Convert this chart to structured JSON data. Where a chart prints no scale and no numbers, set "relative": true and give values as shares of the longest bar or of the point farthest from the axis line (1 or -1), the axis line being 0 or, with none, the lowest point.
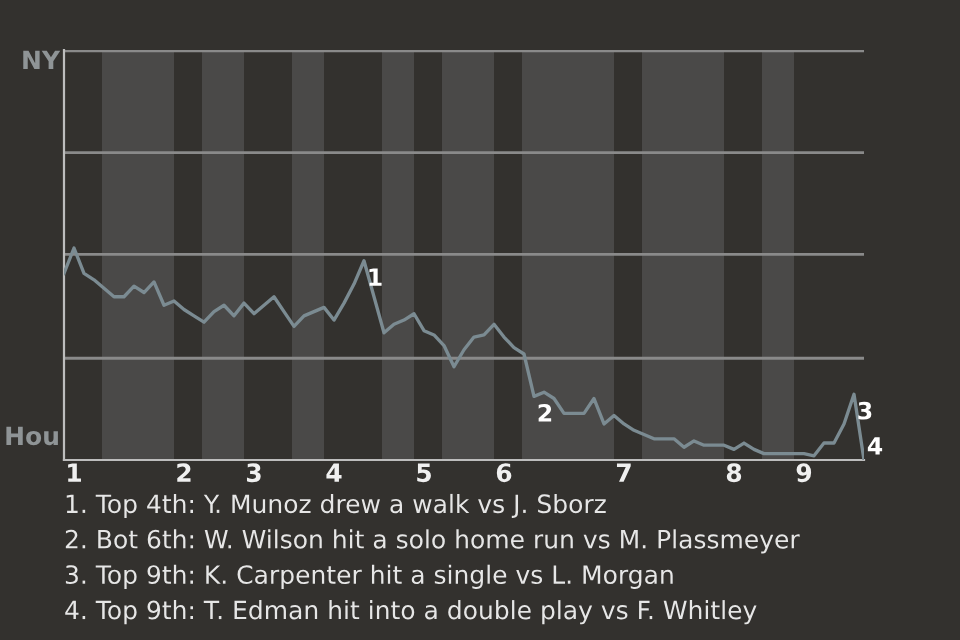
{
  "chart_data": {
    "type": "line",
    "relative": true,
    "categories": [
      null,
      "1",
      null,
      null,
      null,
      null,
      null,
      null,
      null,
      null,
      null,
      null,
      "2",
      null,
      null,
      null,
      null,
      null,
      null,
      "3",
      null,
      null,
      null,
      null,
      null,
      null,
      null,
      "4",
      null,
      null,
      null,
      null,
      null,
      null,
      null,
      null,
      "5",
      null,
      null,
      null,
      null,
      null,
      null,
      null,
      "6",
      null,
      null,
      null,
      null,
      null,
      null,
      null,
      null,
      null,
      null,
      null,
      "7",
      null,
      null,
      null,
      null,
      null,
      null,
      null,
      null,
      null,
      null,
      "8",
      null,
      null,
      null,
      null,
      null,
      null,
      "9",
      null,
      null,
      null,
      null,
      null,
      null
    ],
    "series": [
      {
        "color": "#7b8b92",
        "values": [
          0.88,
          1,
          0.88,
          0.85,
          0.81,
          0.77,
          0.77,
          0.82,
          0.79,
          0.84,
          0.73,
          0.75,
          0.71,
          0.68,
          0.65,
          0.7,
          0.73,
          0.68,
          0.74,
          0.69,
          0.73,
          0.77,
          0.7,
          0.63,
          0.68,
          0.7,
          0.72,
          0.66,
          0.74,
          0.83,
          0.94,
          0.77,
          0.6,
          0.64,
          0.66,
          0.69,
          0.61,
          0.59,
          0.54,
          0.44,
          0.52,
          0.58,
          0.59,
          0.64,
          0.58,
          0.53,
          0.5,
          0.3,
          0.32,
          0.29,
          0.22,
          0.22,
          0.22,
          0.29,
          0.17,
          0.21,
          0.17,
          0.14,
          0.12,
          0.1,
          0.1,
          0.1,
          0.06,
          0.09,
          0.07,
          0.07,
          0.07,
          0.05,
          0.08,
          0.05,
          0.03,
          0.03,
          0.03,
          0.03,
          0.03,
          0.02,
          0.08,
          0.08,
          0.17,
          0.31,
          0
        ]
      }
    ],
    "marker": "none",
    "line_style": "solid",
    "ref_lines": [
      {
        "axis": "y",
        "value": 0.48,
        "color": "#8a8a8a"
      },
      {
        "axis": "y",
        "value": 0.97,
        "color": "#8a8a8a"
      },
      {
        "axis": "y",
        "value": 1.45,
        "color": "#8a8a8a"
      },
      {
        "axis": "y",
        "value": 1.93,
        "color": "#8a8a8a"
      }
    ],
    "annotations": [
      {
        "text": "1",
        "y": 0.94
      },
      {
        "text": "2",
        "y": 0.3
      },
      {
        "text": "3",
        "y": 0.31
      },
      "4",
      "NY",
      "Hou",
      "1. Top 4th: Y. Munoz drew a walk vs J. Sborz",
      "2. Bot 6th: W. Wilson hit a solo home run vs M. Plassmeyer",
      "3. Top 9th: K. Carpenter hit a single vs L. Morgan",
      "4. Top 9th: T. Edman hit into a double play vs F. Whitley"
    ]
  }
}
